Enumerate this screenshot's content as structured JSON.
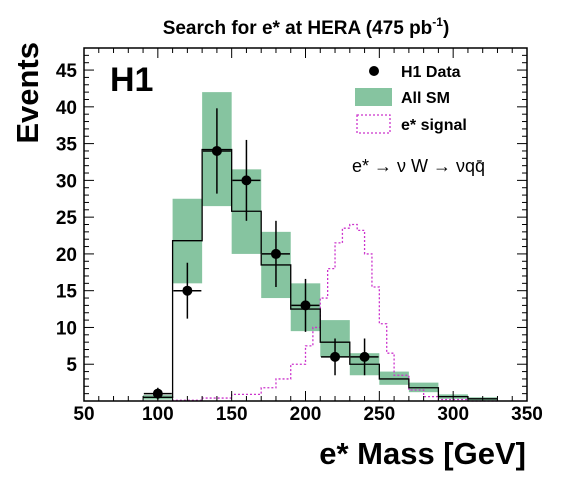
{
  "chart_data": {
    "type": "bar",
    "title": "Search for e* at HERA (475 pb",
    "title_sup": "-1",
    "title_close": ")",
    "experiment_label": "H1",
    "xlabel": "e* Mass [GeV]",
    "ylabel": "Events",
    "xlim": [
      50,
      350
    ],
    "ylim": [
      0,
      48
    ],
    "xticks": [
      50,
      100,
      150,
      200,
      250,
      300,
      350
    ],
    "yticks": [
      5,
      10,
      15,
      20,
      25,
      30,
      35,
      40,
      45
    ],
    "grid": false,
    "legend_position": "top-right",
    "process_label": "e* → ν W → νqq̄",
    "colors": {
      "sm_band": "#86c4a0",
      "signal": "#cc33cc",
      "data": "#000000"
    },
    "series": [
      {
        "name": "H1 Data",
        "kind": "points",
        "points": [
          {
            "x": 100,
            "y": 1,
            "err": 0.8
          },
          {
            "x": 120,
            "y": 15,
            "err": 3.8
          },
          {
            "x": 140,
            "y": 34,
            "err": 5.8
          },
          {
            "x": 160,
            "y": 30,
            "err": 5.5
          },
          {
            "x": 180,
            "y": 20,
            "err": 4.5
          },
          {
            "x": 200,
            "y": 13,
            "err": 3.6
          },
          {
            "x": 220,
            "y": 6,
            "err": 2.5
          },
          {
            "x": 240,
            "y": 6,
            "err": 2.5
          }
        ]
      },
      {
        "name": "All SM",
        "kind": "band",
        "bin_edges": [
          90,
          110,
          130,
          150,
          170,
          190,
          210,
          230,
          250,
          270,
          290,
          310,
          330
        ],
        "values": [
          0.5,
          21.8,
          34.2,
          25.8,
          18.5,
          12.5,
          8.0,
          5.0,
          3.0,
          1.8,
          0.6,
          0.3
        ],
        "band_low": [
          0.2,
          16.0,
          26.5,
          20.0,
          14.0,
          9.5,
          6.0,
          3.5,
          2.2,
          1.2,
          0.3,
          0.1
        ],
        "band_high": [
          0.8,
          27.5,
          42.0,
          31.5,
          23.0,
          16.0,
          11.0,
          6.5,
          4.0,
          2.5,
          0.9,
          0.5
        ]
      },
      {
        "name": "e* signal",
        "kind": "step",
        "bin_edges": [
          110,
          130,
          150,
          170,
          180,
          190,
          200,
          205,
          210,
          215,
          220,
          225,
          230,
          235,
          240,
          245,
          250,
          255,
          260,
          270,
          280,
          290,
          310,
          330
        ],
        "values": [
          0.1,
          0.4,
          0.9,
          1.8,
          3.0,
          5.0,
          7.5,
          10.0,
          14.0,
          18.0,
          21.5,
          23.5,
          24.0,
          23.2,
          20.0,
          15.5,
          10.5,
          6.5,
          3.5,
          1.5,
          0.6,
          0.2,
          0.0
        ]
      }
    ]
  }
}
